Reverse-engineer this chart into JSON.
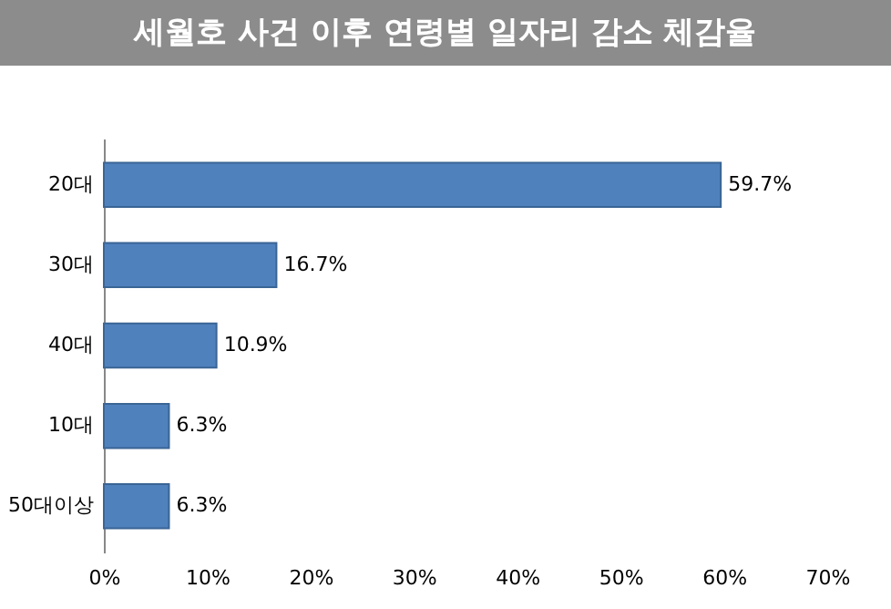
{
  "chart_data": {
    "type": "bar",
    "orientation": "horizontal",
    "title": "세월호 사건 이후 연령별 일자리 감소 체감율",
    "categories": [
      "20대",
      "30대",
      "40대",
      "10대",
      "50대이상"
    ],
    "values": [
      59.7,
      16.7,
      10.9,
      6.3,
      6.3
    ],
    "value_labels": [
      "59.7%",
      "16.7%",
      "10.9%",
      "6.3%",
      "6.3%"
    ],
    "color": "#4f81bd",
    "xlim": [
      0,
      70
    ],
    "xticks": [
      {
        "value": 0,
        "label": "0%"
      },
      {
        "value": 10,
        "label": "10%"
      },
      {
        "value": 20,
        "label": "20%"
      },
      {
        "value": 30,
        "label": "30%"
      },
      {
        "value": 40,
        "label": "40%"
      },
      {
        "value": 50,
        "label": "50%"
      },
      {
        "value": 60,
        "label": "60%"
      },
      {
        "value": 70,
        "label": "70%"
      }
    ],
    "grid": false
  }
}
